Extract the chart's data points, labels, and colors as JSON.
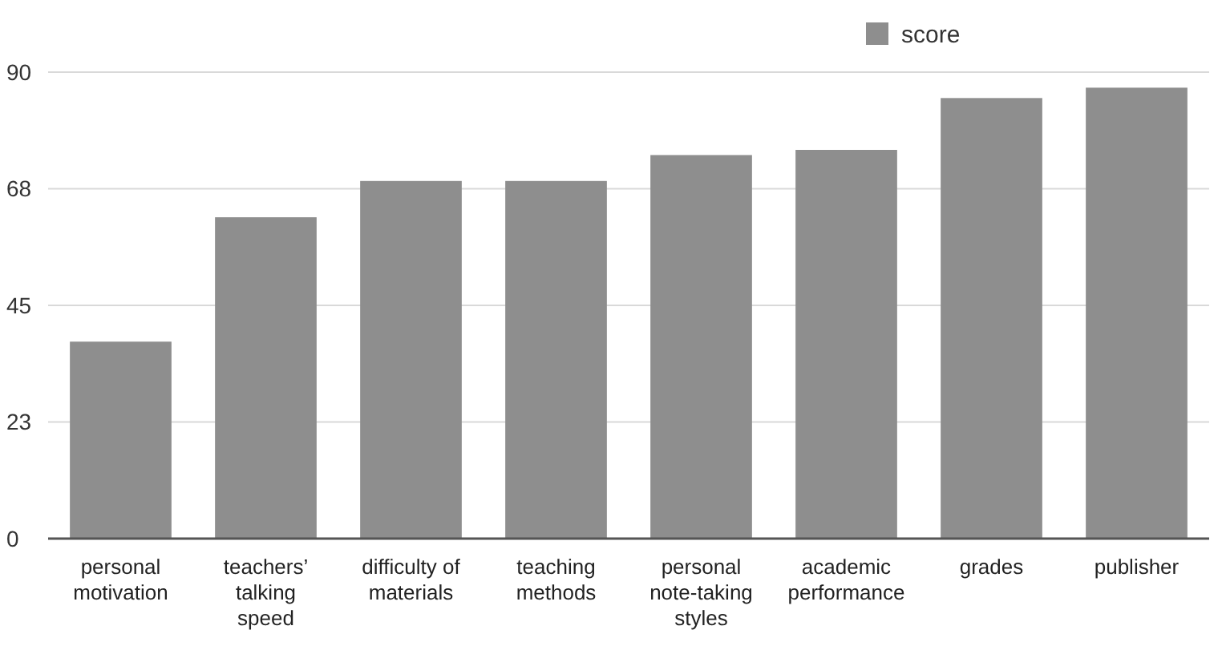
{
  "chart_data": {
    "type": "bar",
    "categories": [
      "personal\nmotivation",
      "teachers’\ntalking\nspeed",
      "difficulty of\nmaterials",
      "teaching\nmethods",
      "personal\nnote-taking\nstyles",
      "academic\nperformance",
      "grades",
      "publisher"
    ],
    "series": [
      {
        "name": "score",
        "color": "#8e8e8e",
        "values": [
          38,
          62,
          69,
          69,
          74,
          75,
          85,
          87
        ]
      }
    ],
    "ylim": [
      0,
      90
    ],
    "yticks": [
      0,
      {
        "value": 22.5,
        "label": "23"
      },
      45,
      {
        "value": 67.5,
        "label": "68"
      },
      90
    ],
    "grid": "y",
    "legend": "top right"
  }
}
